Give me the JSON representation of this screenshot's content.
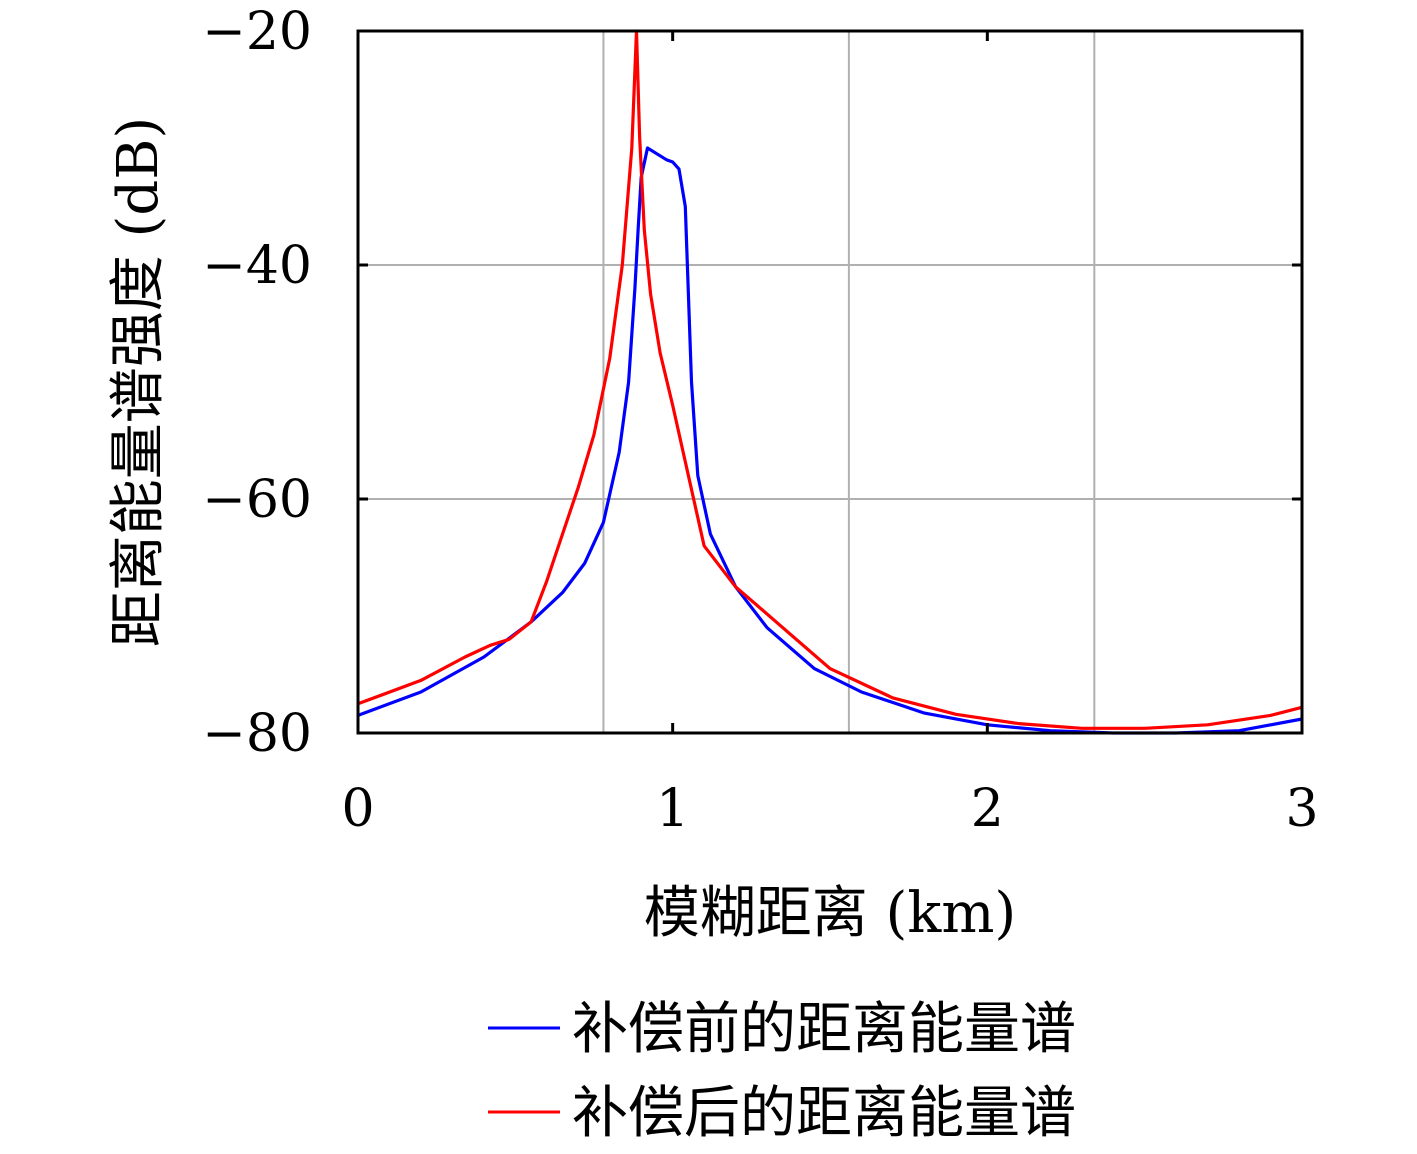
{
  "chart_data": {
    "type": "line",
    "title": "",
    "xlabel": "模糊距离 (km)",
    "ylabel": "距离能量谱强度 (dB)",
    "xlim": [
      0,
      3
    ],
    "ylim": [
      -80,
      -20
    ],
    "xticks": [
      0,
      1,
      2,
      3
    ],
    "xtick_labels": [
      "0",
      "1",
      "2",
      "3"
    ],
    "yticks": [
      -20,
      -40,
      -60,
      -80
    ],
    "ytick_labels": [
      "−20",
      "−40",
      "−60",
      "−80"
    ],
    "grid": true,
    "grid_x": [
      0.78,
      1.56,
      2.34
    ],
    "legend_position": "bottom",
    "series": [
      {
        "name": "补偿前的距离能量谱",
        "color": "#0000ff",
        "x": [
          0,
          0.2,
          0.4,
          0.55,
          0.65,
          0.72,
          0.78,
          0.83,
          0.86,
          0.88,
          0.89,
          0.9,
          0.92,
          0.95,
          0.98,
          1.0,
          1.02,
          1.04,
          1.06,
          1.08,
          1.12,
          1.2,
          1.3,
          1.45,
          1.6,
          1.8,
          2.0,
          2.2,
          2.4,
          2.6,
          2.8,
          3.0
        ],
        "values": [
          -78.5,
          -76.5,
          -73.5,
          -70.5,
          -68.0,
          -65.5,
          -62.0,
          -56.0,
          -50.0,
          -42.0,
          -37.0,
          -32.5,
          -30.0,
          -30.5,
          -31.0,
          -31.2,
          -31.8,
          -35.0,
          -50.0,
          -58.0,
          -63.0,
          -67.5,
          -71.0,
          -74.5,
          -76.5,
          -78.3,
          -79.3,
          -79.8,
          -80.0,
          -80.0,
          -79.8,
          -78.8
        ]
      },
      {
        "name": "补偿后的距离能量谱",
        "color": "#ff0000",
        "x": [
          0,
          0.2,
          0.34,
          0.42,
          0.48,
          0.55,
          0.6,
          0.65,
          0.7,
          0.75,
          0.8,
          0.84,
          0.87,
          0.885,
          0.895,
          0.91,
          0.93,
          0.96,
          1.0,
          1.05,
          1.1,
          1.2,
          1.35,
          1.5,
          1.7,
          1.9,
          2.1,
          2.3,
          2.5,
          2.7,
          2.9,
          3.0
        ],
        "values": [
          -77.5,
          -75.5,
          -73.5,
          -72.5,
          -72.0,
          -70.5,
          -67.0,
          -63.0,
          -59.0,
          -54.5,
          -48.0,
          -40.0,
          -30.0,
          -20.0,
          -29.0,
          -37.0,
          -42.5,
          -47.5,
          -52.0,
          -58.0,
          -64.0,
          -67.5,
          -71.0,
          -74.5,
          -77.0,
          -78.4,
          -79.2,
          -79.6,
          -79.6,
          -79.3,
          -78.5,
          -77.8
        ]
      }
    ]
  }
}
